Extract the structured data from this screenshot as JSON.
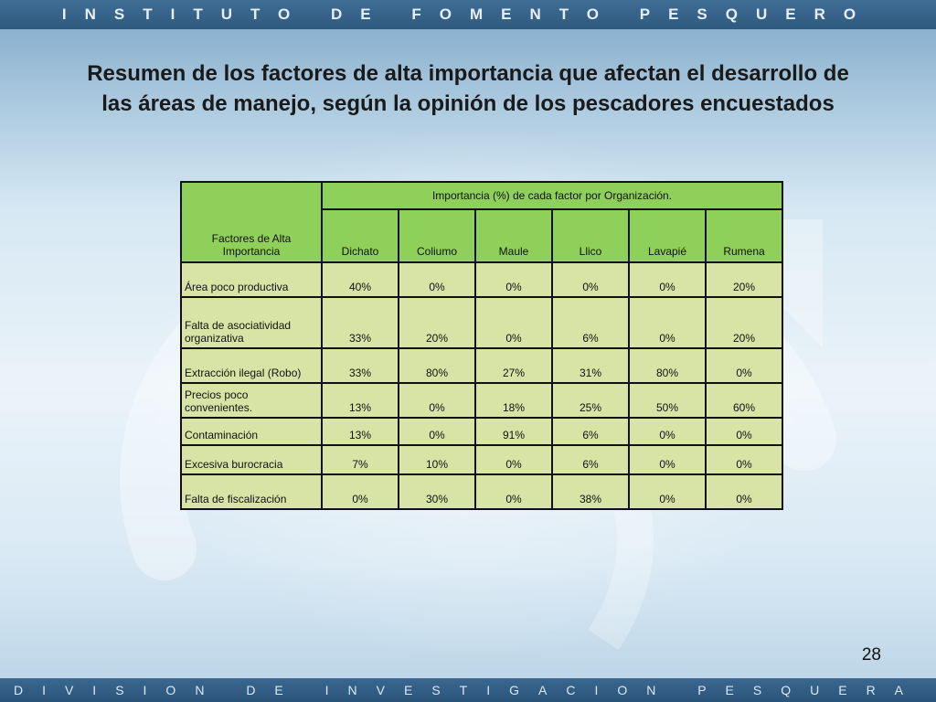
{
  "header_banner": "INSTITUTO DE FOMENTO PESQUERO",
  "footer_banner": "DIVISION DE INVESTIGACION PESQUERA",
  "title_line1": "Resumen de los factores de alta importancia que afectan el desarrollo de",
  "title_line2": "las áreas de manejo, según la opinión de los pescadores encuestados",
  "page_number": "28",
  "table": {
    "factor_header": "Factores de Alta Importancia",
    "group_header": "Importancia (%) de cada factor por Organización.",
    "columns": [
      "Dichato",
      "Coliumo",
      "Maule",
      "Llico",
      "Lavapié",
      "Rumena"
    ],
    "rows": [
      {
        "factor": "Área poco productiva",
        "values": [
          "40%",
          "0%",
          "0%",
          "0%",
          "0%",
          "20%"
        ]
      },
      {
        "factor": "Falta de asociatividad organizativa",
        "values": [
          "33%",
          "20%",
          "0%",
          "6%",
          "0%",
          "20%"
        ]
      },
      {
        "factor": "Extracción ilegal (Robo)",
        "values": [
          "33%",
          "80%",
          "27%",
          "31%",
          "80%",
          "0%"
        ]
      },
      {
        "factor": "Precios poco convenientes.",
        "values": [
          "13%",
          "0%",
          "18%",
          "25%",
          "50%",
          "60%"
        ]
      },
      {
        "factor": "Contaminación",
        "values": [
          "13%",
          "0%",
          "91%",
          "6%",
          "0%",
          "0%"
        ]
      },
      {
        "factor": "Excesiva burocracia",
        "values": [
          "7%",
          "10%",
          "0%",
          "6%",
          "0%",
          "0%"
        ]
      },
      {
        "factor": "Falta de fiscalización",
        "values": [
          "0%",
          "30%",
          "0%",
          "38%",
          "0%",
          "0%"
        ]
      }
    ]
  },
  "colors": {
    "header_green": "#8fd05a",
    "cell_green": "#d7e4a6",
    "banner_blue": "#2f5a80"
  }
}
